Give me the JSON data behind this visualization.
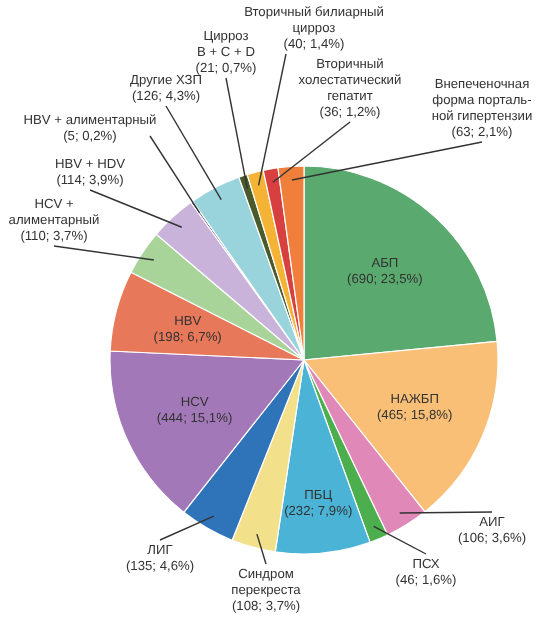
{
  "chart_data": {
    "type": "pie",
    "categories": [
      "АБП",
      "НАЖБП",
      "АИГ",
      "ПСХ",
      "ПБЦ",
      "Синдром\nперекреста",
      "ЛИГ",
      "HCV",
      "HBV",
      "HCV +\nалиментарный",
      "HBV + HDV",
      "HBV + алиментарный",
      "Другие ХЗП",
      "Цирроз\nB + C + D",
      "Вторичный билиарный\nцирроз",
      "Вторичный\nхолестатический\nгепатит",
      "Внепеченочная\nформа порталь-\nной гипертензии"
    ],
    "values": [
      690,
      465,
      106,
      46,
      232,
      108,
      135,
      444,
      198,
      110,
      114,
      5,
      126,
      21,
      40,
      36,
      63
    ],
    "colors": [
      "#5aa96e",
      "#f9bf77",
      "#e088b8",
      "#4cae4c",
      "#4ab3d6",
      "#f2e08a",
      "#2f73b8",
      "#a378b8",
      "#e8785a",
      "#a8d49a",
      "#c9b3da",
      "#3a2a55",
      "#99d3dc",
      "#4a5a2a",
      "#f5b335",
      "#d84040",
      "#ef7f3a"
    ],
    "value_labels": [
      "(690; 23,5%)",
      "(465; 15,8%)",
      "(106; 3,6%)",
      "(46; 1,6%)",
      "(232; 7,9%)",
      "(108; 3,7%)",
      "(135; 4,6%)",
      "(444; 15,1%)",
      "(198; 6,7%)",
      "(110; 3,7%)",
      "(114; 3,9%)",
      "(5; 0,2%)",
      "(126; 4,3%)",
      "(21; 0,7%)",
      "(40; 1,4%)",
      "(36; 1,2%)",
      "(63; 2,1%)"
    ]
  }
}
